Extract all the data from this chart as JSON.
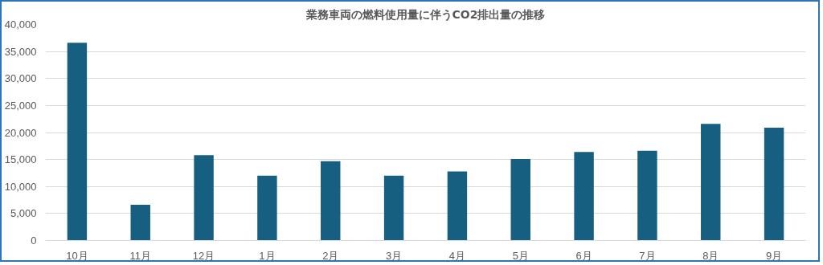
{
  "chart_data": {
    "type": "bar",
    "title": "業務車両の燃料使用量に伴うCO2排出量の推移",
    "categories": [
      "10月",
      "11月",
      "12月",
      "1月",
      "2月",
      "3月",
      "4月",
      "5月",
      "6月",
      "7月",
      "8月",
      "9月"
    ],
    "values": [
      36600,
      6600,
      15800,
      12000,
      14700,
      12000,
      12800,
      15100,
      16400,
      16600,
      21600,
      20900
    ],
    "color": "#175f80",
    "ylim": [
      0,
      40000
    ],
    "yticks": [
      {
        "value": 0,
        "label": "0"
      },
      {
        "value": 5000,
        "label": "5,000"
      },
      {
        "value": 10000,
        "label": "10,000"
      },
      {
        "value": 15000,
        "label": "15,000"
      },
      {
        "value": 20000,
        "label": "20,000"
      },
      {
        "value": 25000,
        "label": "25,000"
      },
      {
        "value": 30000,
        "label": "30,000"
      },
      {
        "value": 35000,
        "label": "35,000"
      },
      {
        "value": 40000,
        "label": "40,000"
      }
    ],
    "grid": "y"
  }
}
